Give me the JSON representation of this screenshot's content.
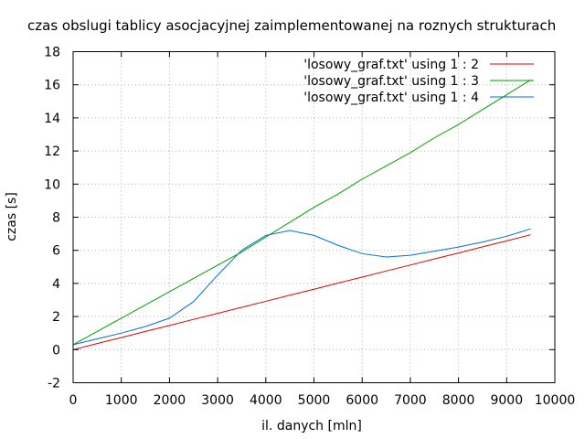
{
  "chart_data": {
    "type": "line",
    "title": "czas obslugi tablicy asocjacyjnej zaimplementowanej na roznych strukturach",
    "xlabel": "il. danych [mln]",
    "ylabel": "czas [s]",
    "xlim": [
      0,
      10000
    ],
    "ylim": [
      -2,
      18
    ],
    "xticks": [
      0,
      1000,
      2000,
      3000,
      4000,
      5000,
      6000,
      7000,
      8000,
      9000,
      10000
    ],
    "yticks": [
      -2,
      0,
      2,
      4,
      6,
      8,
      10,
      12,
      14,
      16,
      18
    ],
    "grid": true,
    "legend_position": "top-right",
    "series": [
      {
        "name": "'losowy_graf.txt' using 1 : 2",
        "color": "#e00000",
        "x": [
          0,
          500,
          1000,
          1500,
          2000,
          2500,
          3000,
          3500,
          4000,
          4500,
          5000,
          5500,
          6000,
          6500,
          7000,
          7500,
          8000,
          8500,
          9000,
          9500
        ],
        "y": [
          0.0,
          0.37,
          0.73,
          1.1,
          1.46,
          1.83,
          2.19,
          2.56,
          2.92,
          3.29,
          3.65,
          4.02,
          4.38,
          4.75,
          5.11,
          5.48,
          5.84,
          6.21,
          6.57,
          6.94
        ]
      },
      {
        "name": "'losowy_graf.txt' using 1 : 3",
        "color": "#00a000",
        "x": [
          0,
          500,
          1000,
          1500,
          2000,
          2500,
          3000,
          3500,
          4000,
          4500,
          5000,
          5500,
          6000,
          6500,
          7000,
          7500,
          8000,
          8500,
          9000,
          9500
        ],
        "y": [
          0.3,
          1.1,
          1.9,
          2.7,
          3.5,
          4.3,
          5.1,
          5.9,
          6.8,
          7.7,
          8.6,
          9.4,
          10.3,
          11.1,
          11.9,
          12.8,
          13.6,
          14.5,
          15.4,
          16.3
        ]
      },
      {
        "name": "'losowy_graf.txt' using 1 : 4",
        "color": "#0070d0",
        "x": [
          0,
          500,
          1000,
          1500,
          2000,
          2500,
          3000,
          3500,
          4000,
          4500,
          5000,
          5500,
          6000,
          6500,
          7000,
          7500,
          8000,
          8500,
          9000,
          9500
        ],
        "y": [
          0.3,
          0.65,
          1.0,
          1.4,
          1.9,
          2.9,
          4.5,
          6.0,
          6.9,
          7.2,
          6.9,
          6.3,
          5.8,
          5.6,
          5.7,
          5.95,
          6.2,
          6.5,
          6.85,
          7.3
        ]
      }
    ]
  }
}
